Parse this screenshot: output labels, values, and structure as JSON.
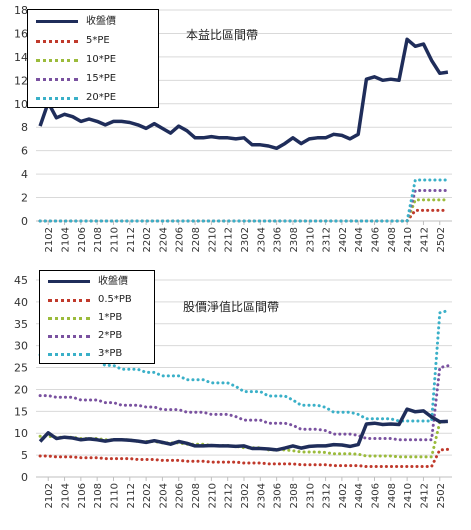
{
  "chart_data": [
    {
      "type": "line",
      "title": "本益比區間帶",
      "x": [
        "2101",
        "2102",
        "2103",
        "2104",
        "2105",
        "2106",
        "2107",
        "2108",
        "2109",
        "2110",
        "2111",
        "2112",
        "2201",
        "2202",
        "2203",
        "2204",
        "2205",
        "2206",
        "2207",
        "2208",
        "2209",
        "2210",
        "2211",
        "2212",
        "2301",
        "2302",
        "2303",
        "2304",
        "2305",
        "2306",
        "2307",
        "2308",
        "2309",
        "2310",
        "2311",
        "2312",
        "2401",
        "2402",
        "2403",
        "2404",
        "2405",
        "2406",
        "2407",
        "2408",
        "2409",
        "2410",
        "2411",
        "2412",
        "2501",
        "2502",
        "2503"
      ],
      "xticks": [
        "2102",
        "2104",
        "2106",
        "2108",
        "2110",
        "2112",
        "2202",
        "2204",
        "2206",
        "2208",
        "2210",
        "2212",
        "2302",
        "2304",
        "2306",
        "2308",
        "2310",
        "2312",
        "2402",
        "2404",
        "2406",
        "2408",
        "2410",
        "2412",
        "2502"
      ],
      "ylim": [
        0,
        18
      ],
      "yticks": [
        0,
        2,
        4,
        6,
        8,
        10,
        12,
        14,
        16,
        18
      ],
      "grid": true,
      "legend_position": "top-left",
      "series": [
        {
          "name": "收盤價",
          "color": "#1f2d5a",
          "style": "solid",
          "values": [
            8.1,
            10.1,
            8.8,
            9.1,
            8.9,
            8.5,
            8.7,
            8.5,
            8.2,
            8.5,
            8.5,
            8.4,
            8.2,
            7.9,
            8.3,
            7.9,
            7.5,
            8.1,
            7.7,
            7.1,
            7.1,
            7.2,
            7.1,
            7.1,
            7.0,
            7.1,
            6.5,
            6.5,
            6.4,
            6.2,
            6.6,
            7.1,
            6.6,
            7.0,
            7.1,
            7.1,
            7.4,
            7.3,
            7.0,
            7.4,
            12.1,
            12.3,
            12.0,
            12.1,
            12.0,
            15.5,
            14.9,
            15.1,
            13.7,
            12.6,
            12.7
          ]
        },
        {
          "name": "5*PE",
          "color": "#c0392b",
          "style": "dotted",
          "values": [
            0,
            0,
            0,
            0,
            0,
            0,
            0,
            0,
            0,
            0,
            0,
            0,
            0,
            0,
            0,
            0,
            0,
            0,
            0,
            0,
            0,
            0,
            0,
            0,
            0,
            0,
            0,
            0,
            0,
            0,
            0,
            0,
            0,
            0,
            0,
            0,
            0,
            0,
            0,
            0,
            0,
            0,
            0,
            0,
            0,
            0,
            0.9,
            0.9,
            0.9,
            0.9,
            0.9
          ]
        },
        {
          "name": "10*PE",
          "color": "#9bbb3b",
          "style": "dotted",
          "values": [
            0,
            0,
            0,
            0,
            0,
            0,
            0,
            0,
            0,
            0,
            0,
            0,
            0,
            0,
            0,
            0,
            0,
            0,
            0,
            0,
            0,
            0,
            0,
            0,
            0,
            0,
            0,
            0,
            0,
            0,
            0,
            0,
            0,
            0,
            0,
            0,
            0,
            0,
            0,
            0,
            0,
            0,
            0,
            0,
            0,
            0,
            1.8,
            1.8,
            1.8,
            1.8,
            1.8
          ]
        },
        {
          "name": "15*PE",
          "color": "#7a52a0",
          "style": "dotted",
          "values": [
            0,
            0,
            0,
            0,
            0,
            0,
            0,
            0,
            0,
            0,
            0,
            0,
            0,
            0,
            0,
            0,
            0,
            0,
            0,
            0,
            0,
            0,
            0,
            0,
            0,
            0,
            0,
            0,
            0,
            0,
            0,
            0,
            0,
            0,
            0,
            0,
            0,
            0,
            0,
            0,
            0,
            0,
            0,
            0,
            0,
            0,
            2.6,
            2.6,
            2.6,
            2.6,
            2.6
          ]
        },
        {
          "name": "20*PE",
          "color": "#3ab0c8",
          "style": "dotted",
          "values": [
            0,
            0,
            0,
            0,
            0,
            0,
            0,
            0,
            0,
            0,
            0,
            0,
            0,
            0,
            0,
            0,
            0,
            0,
            0,
            0,
            0,
            0,
            0,
            0,
            0,
            0,
            0,
            0,
            0,
            0,
            0,
            0,
            0,
            0,
            0,
            0,
            0,
            0,
            0,
            0,
            0,
            0,
            0,
            0,
            0,
            0,
            3.5,
            3.5,
            3.5,
            3.5,
            3.5
          ]
        }
      ]
    },
    {
      "type": "line",
      "title": "股價淨值比區間帶",
      "x": [
        "2101",
        "2102",
        "2103",
        "2104",
        "2105",
        "2106",
        "2107",
        "2108",
        "2109",
        "2110",
        "2111",
        "2112",
        "2201",
        "2202",
        "2203",
        "2204",
        "2205",
        "2206",
        "2207",
        "2208",
        "2209",
        "2210",
        "2211",
        "2212",
        "2301",
        "2302",
        "2303",
        "2304",
        "2305",
        "2306",
        "2307",
        "2308",
        "2309",
        "2310",
        "2311",
        "2312",
        "2401",
        "2402",
        "2403",
        "2404",
        "2405",
        "2406",
        "2407",
        "2408",
        "2409",
        "2410",
        "2411",
        "2412",
        "2501",
        "2502",
        "2503"
      ],
      "xticks": [
        "2102",
        "2104",
        "2106",
        "2108",
        "2110",
        "2112",
        "2202",
        "2204",
        "2206",
        "2208",
        "2210",
        "2212",
        "2302",
        "2304",
        "2306",
        "2308",
        "2310",
        "2312",
        "2402",
        "2404",
        "2406",
        "2408",
        "2410",
        "2412",
        "2502"
      ],
      "ylim": [
        0,
        45
      ],
      "yticks": [
        0,
        5,
        10,
        15,
        20,
        25,
        30,
        35,
        40,
        45
      ],
      "grid": true,
      "legend_position": "top-left",
      "series": [
        {
          "name": "收盤價",
          "color": "#1f2d5a",
          "style": "solid",
          "values": [
            8.1,
            10.1,
            8.8,
            9.1,
            8.9,
            8.5,
            8.7,
            8.5,
            8.2,
            8.5,
            8.5,
            8.4,
            8.2,
            7.9,
            8.3,
            7.9,
            7.5,
            8.1,
            7.7,
            7.1,
            7.1,
            7.2,
            7.1,
            7.1,
            7.0,
            7.1,
            6.5,
            6.5,
            6.4,
            6.2,
            6.6,
            7.1,
            6.6,
            7.0,
            7.1,
            7.1,
            7.4,
            7.3,
            7.0,
            7.4,
            12.1,
            12.3,
            12.0,
            12.1,
            12.0,
            15.5,
            14.9,
            15.1,
            13.7,
            12.6,
            12.7
          ]
        },
        {
          "name": "0.5*PB",
          "color": "#c0392b",
          "style": "dotted",
          "values": [
            4.8,
            4.8,
            4.6,
            4.6,
            4.6,
            4.4,
            4.4,
            4.4,
            4.2,
            4.2,
            4.2,
            4.2,
            4.0,
            4.0,
            4.0,
            3.8,
            3.8,
            3.8,
            3.6,
            3.6,
            3.6,
            3.4,
            3.4,
            3.4,
            3.4,
            3.2,
            3.2,
            3.2,
            3.0,
            3.0,
            3.0,
            3.0,
            2.8,
            2.8,
            2.8,
            2.8,
            2.6,
            2.6,
            2.6,
            2.6,
            2.4,
            2.4,
            2.4,
            2.4,
            2.4,
            2.4,
            2.4,
            2.4,
            2.4,
            6.2,
            6.3
          ]
        },
        {
          "name": "1*PB",
          "color": "#9bbb3b",
          "style": "dotted",
          "values": [
            9.3,
            9.3,
            9.1,
            9.1,
            9.1,
            8.8,
            8.8,
            8.8,
            8.5,
            8.5,
            8.5,
            8.5,
            8.1,
            8.1,
            8.1,
            7.8,
            7.8,
            7.8,
            7.5,
            7.5,
            7.5,
            7.2,
            7.2,
            7.2,
            7.0,
            6.7,
            6.7,
            6.7,
            6.2,
            6.2,
            6.2,
            6.0,
            5.7,
            5.7,
            5.7,
            5.6,
            5.3,
            5.3,
            5.3,
            5.2,
            4.8,
            4.8,
            4.8,
            4.8,
            4.6,
            4.6,
            4.6,
            4.6,
            4.6,
            12.5,
            12.7
          ]
        },
        {
          "name": "2*PB",
          "color": "#7a52a0",
          "style": "dotted",
          "values": [
            18.6,
            18.6,
            18.2,
            18.2,
            18.2,
            17.6,
            17.6,
            17.6,
            17.0,
            17.0,
            16.4,
            16.4,
            16.4,
            16.0,
            16.0,
            15.4,
            15.4,
            15.4,
            14.8,
            14.8,
            14.8,
            14.3,
            14.3,
            14.3,
            13.8,
            13.0,
            13.0,
            13.0,
            12.3,
            12.3,
            12.3,
            11.8,
            10.9,
            10.9,
            10.9,
            10.6,
            9.8,
            9.8,
            9.8,
            9.5,
            8.8,
            8.8,
            8.8,
            8.8,
            8.5,
            8.5,
            8.5,
            8.5,
            8.5,
            25.0,
            25.4
          ]
        },
        {
          "name": "3*PB",
          "color": "#3ab0c8",
          "style": "dotted",
          "values": [
            27.9,
            27.9,
            27.3,
            27.3,
            27.3,
            26.5,
            26.5,
            26.5,
            25.5,
            25.5,
            24.6,
            24.6,
            24.6,
            23.9,
            23.9,
            23.1,
            23.1,
            23.1,
            22.2,
            22.2,
            22.2,
            21.5,
            21.5,
            21.5,
            20.7,
            19.5,
            19.5,
            19.5,
            18.5,
            18.5,
            18.5,
            17.6,
            16.4,
            16.4,
            16.4,
            15.9,
            14.8,
            14.8,
            14.8,
            14.3,
            13.3,
            13.3,
            13.3,
            13.3,
            12.8,
            12.8,
            12.8,
            12.8,
            12.8,
            37.5,
            38.0
          ]
        }
      ]
    }
  ]
}
